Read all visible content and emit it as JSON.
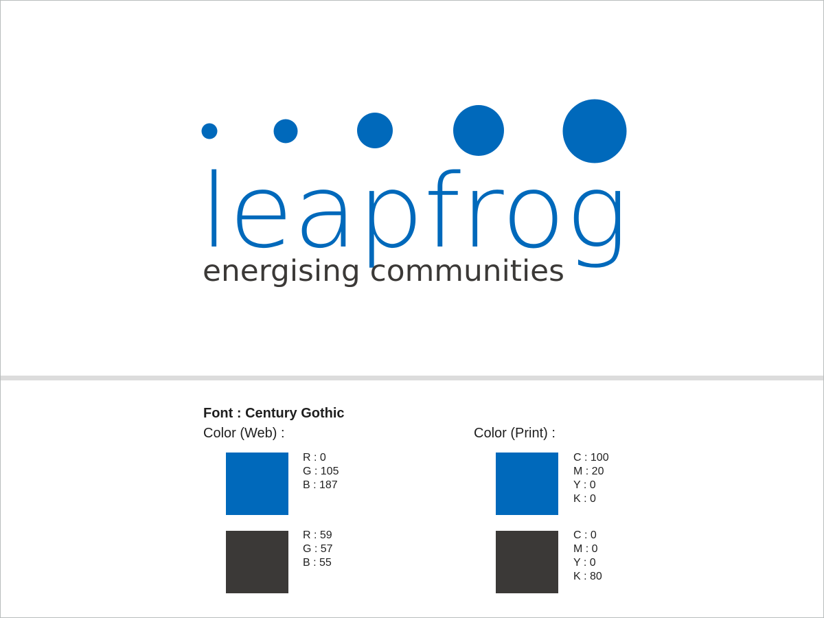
{
  "logo": {
    "wordmark": "leapfrog",
    "tagline": "energising communities",
    "wordmark_color": "#0069bb",
    "tagline_color": "#3b3937",
    "dot_icons": [
      "dot-icon-1",
      "dot-icon-2",
      "dot-icon-3",
      "dot-icon-4",
      "dot-icon-5"
    ]
  },
  "spec": {
    "font_label": "Font : Century Gothic",
    "web": {
      "heading": "Color (Web) :",
      "swatches": [
        {
          "color": "#0069bb",
          "lines": [
            "R : 0",
            "G : 105",
            "B : 187"
          ]
        },
        {
          "color": "#3b3937",
          "lines": [
            "R : 59",
            "G : 57",
            "B : 55"
          ]
        }
      ]
    },
    "print": {
      "heading": "Color (Print) :",
      "swatches": [
        {
          "color": "#0069bb",
          "lines": [
            "C : 100",
            "M : 20",
            "Y : 0",
            "K : 0"
          ]
        },
        {
          "color": "#3b3937",
          "lines": [
            "C : 0",
            "M : 0",
            "Y : 0",
            "K : 80"
          ]
        }
      ]
    }
  }
}
